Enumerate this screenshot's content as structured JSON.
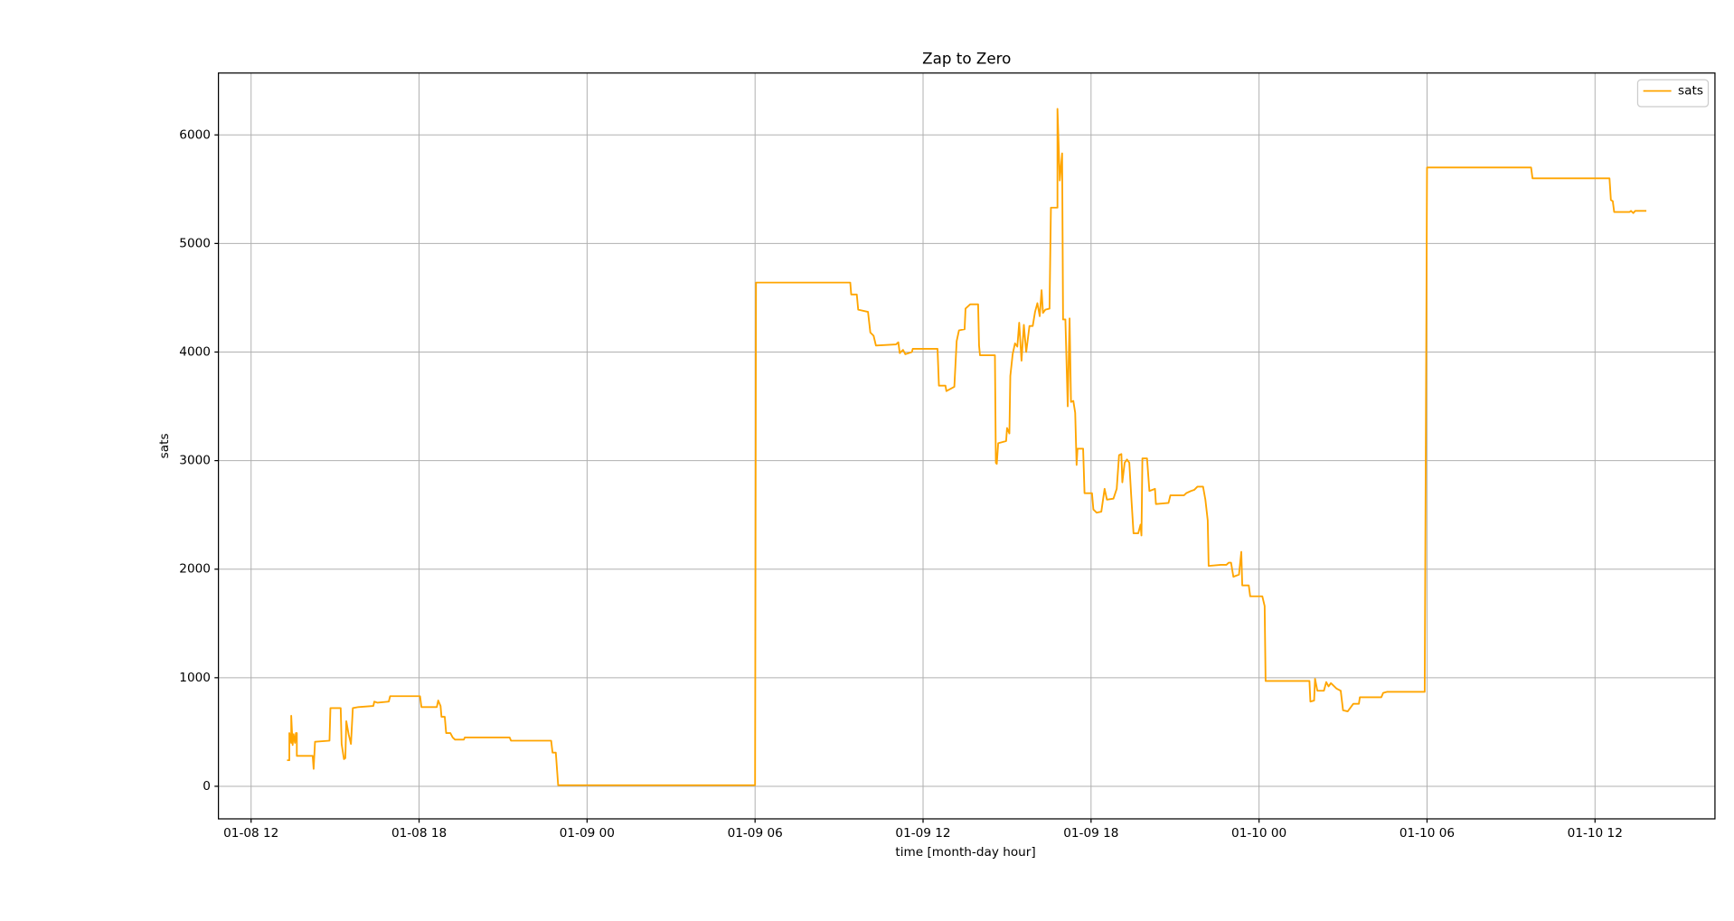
{
  "chart_data": {
    "type": "line",
    "title": "Zap to Zero",
    "x_label": "time [month-day hour]",
    "y_label": "sats",
    "xlim": [
      "01-08 10:50",
      "01-10 16:17"
    ],
    "xticks": [
      "01-08 12",
      "01-08 18",
      "01-09 00",
      "01-09 06",
      "01-09 12",
      "01-09 18",
      "01-10 00",
      "01-10 06",
      "01-10 12"
    ],
    "ylim": [
      -300,
      6570
    ],
    "yticks": [
      0,
      1000,
      2000,
      3000,
      4000,
      5000,
      6000
    ],
    "grid": true,
    "legend": "upper right",
    "x": [
      "01-08 13:17",
      "01-08 13:22",
      "01-08 13:22",
      "01-08 13:26",
      "01-08 13:26",
      "01-08 13:29",
      "01-08 13:31",
      "01-08 13:34",
      "01-08 13:36",
      "01-08 13:38",
      "01-08 13:38",
      "01-08 14:12",
      "01-08 14:14",
      "01-08 14:17",
      "01-08 14:48",
      "01-08 14:50",
      "01-08 15:12",
      "01-08 15:14",
      "01-08 15:19",
      "01-08 15:22",
      "01-08 15:24",
      "01-08 15:29",
      "01-08 15:34",
      "01-08 15:38",
      "01-08 15:50",
      "01-08 16:22",
      "01-08 16:24",
      "01-08 16:31",
      "01-08 16:55",
      "01-08 16:58",
      "01-08 18:02",
      "01-08 18:05",
      "01-08 18:38",
      "01-08 18:41",
      "01-08 18:46",
      "01-08 18:48",
      "01-08 18:55",
      "01-08 18:58",
      "01-08 19:07",
      "01-08 19:12",
      "01-08 19:17",
      "01-08 19:36",
      "01-08 19:38",
      "01-08 21:14",
      "01-08 21:17",
      "01-08 22:43",
      "01-08 22:46",
      "01-08 22:53",
      "01-08 22:58",
      "01-09 06:00",
      "01-09 06:02",
      "01-09 09:24",
      "01-09 09:26",
      "01-09 09:38",
      "01-09 09:41",
      "01-09 10:02",
      "01-09 10:07",
      "01-09 10:14",
      "01-09 10:19",
      "01-09 11:02",
      "01-09 11:07",
      "01-09 11:10",
      "01-09 11:17",
      "01-09 11:22",
      "01-09 11:36",
      "01-09 11:38",
      "01-09 12:31",
      "01-09 12:34",
      "01-09 12:48",
      "01-09 12:50",
      "01-09 13:07",
      "01-09 13:12",
      "01-09 13:17",
      "01-09 13:29",
      "01-09 13:31",
      "01-09 13:41",
      "01-09 13:58",
      "01-09 14:00",
      "01-09 14:02",
      "01-09 14:34",
      "01-09 14:36",
      "01-09 14:38",
      "01-09 14:41",
      "01-09 14:58",
      "01-09 15:00",
      "01-09 15:05",
      "01-09 15:07",
      "01-09 15:12",
      "01-09 15:17",
      "01-09 15:22",
      "01-09 15:26",
      "01-09 15:31",
      "01-09 15:36",
      "01-09 15:41",
      "01-09 15:48",
      "01-09 15:55",
      "01-09 16:00",
      "01-09 16:05",
      "01-09 16:10",
      "01-09 16:14",
      "01-09 16:17",
      "01-09 16:22",
      "01-09 16:31",
      "01-09 16:34",
      "01-09 16:48",
      "01-09 16:48",
      "01-09 16:53",
      "01-09 16:58",
      "01-09 17:00",
      "01-09 17:05",
      "01-09 17:10",
      "01-09 17:14",
      "01-09 17:17",
      "01-09 17:22",
      "01-09 17:26",
      "01-09 17:29",
      "01-09 17:31",
      "01-09 17:43",
      "01-09 17:46",
      "01-09 18:02",
      "01-09 18:05",
      "01-09 18:12",
      "01-09 18:22",
      "01-09 18:29",
      "01-09 18:34",
      "01-09 18:48",
      "01-09 18:55",
      "01-09 19:00",
      "01-09 19:05",
      "01-09 19:07",
      "01-09 19:12",
      "01-09 19:17",
      "01-09 19:22",
      "01-09 19:26",
      "01-09 19:31",
      "01-09 19:41",
      "01-09 19:46",
      "01-09 19:48",
      "01-09 19:50",
      "01-09 20:00",
      "01-09 20:05",
      "01-09 20:17",
      "01-09 20:19",
      "01-09 20:46",
      "01-09 20:50",
      "01-09 21:19",
      "01-09 21:24",
      "01-09 21:34",
      "01-09 21:41",
      "01-09 21:48",
      "01-09 22:00",
      "01-09 22:05",
      "01-09 22:10",
      "01-09 22:12",
      "01-09 22:38",
      "01-09 22:50",
      "01-09 22:55",
      "01-09 23:00",
      "01-09 23:05",
      "01-09 23:17",
      "01-09 23:22",
      "01-09 23:24",
      "01-09 23:38",
      "01-09 23:41",
      "01-10 00:07",
      "01-10 00:12",
      "01-10 00:14",
      "01-10 01:48",
      "01-10 01:50",
      "01-10 01:58",
      "01-10 02:00",
      "01-10 02:05",
      "01-10 02:19",
      "01-10 02:24",
      "01-10 02:29",
      "01-10 02:34",
      "01-10 02:46",
      "01-10 02:55",
      "01-10 03:00",
      "01-10 03:10",
      "01-10 03:22",
      "01-10 03:34",
      "01-10 03:36",
      "01-10 04:22",
      "01-10 04:26",
      "01-10 04:34",
      "01-10 05:55",
      "01-10 06:00",
      "01-10 09:43",
      "01-10 09:46",
      "01-10 12:31",
      "01-10 12:34",
      "01-10 12:38",
      "01-10 12:41",
      "01-10 13:14",
      "01-10 13:17",
      "01-10 13:22",
      "01-10 13:26",
      "01-10 13:50"
    ],
    "series": [
      {
        "name": "sats",
        "color": "#ffa500",
        "values": [
          240,
          240,
          490,
          400,
          650,
          380,
          480,
          400,
          490,
          490,
          280,
          280,
          160,
          410,
          420,
          720,
          720,
          390,
          250,
          260,
          600,
          480,
          390,
          720,
          730,
          740,
          780,
          770,
          780,
          830,
          830,
          730,
          730,
          790,
          740,
          640,
          640,
          490,
          490,
          450,
          430,
          430,
          450,
          450,
          420,
          420,
          310,
          310,
          10,
          10,
          4640,
          4640,
          4530,
          4530,
          4390,
          4370,
          4180,
          4150,
          4060,
          4070,
          4090,
          3990,
          4020,
          3980,
          4000,
          4030,
          4030,
          3690,
          3690,
          3640,
          3680,
          4100,
          4200,
          4210,
          4400,
          4440,
          4440,
          4060,
          3970,
          3970,
          2980,
          2970,
          3160,
          3180,
          3300,
          3250,
          3780,
          3980,
          4080,
          4050,
          4270,
          3920,
          4250,
          4000,
          4240,
          4240,
          4370,
          4450,
          4330,
          4570,
          4360,
          4390,
          4400,
          5330,
          5330,
          6240,
          5580,
          5830,
          4300,
          4300,
          3500,
          4310,
          3540,
          3550,
          3440,
          2960,
          3110,
          3110,
          2700,
          2700,
          2550,
          2520,
          2530,
          2740,
          2640,
          2650,
          2740,
          3050,
          3060,
          2800,
          2980,
          3010,
          2980,
          2680,
          2330,
          2330,
          2410,
          2310,
          3020,
          3020,
          2720,
          2740,
          2600,
          2610,
          2680,
          2680,
          2700,
          2720,
          2730,
          2760,
          2760,
          2640,
          2450,
          2030,
          2040,
          2040,
          2060,
          2060,
          1930,
          1950,
          2160,
          1850,
          1850,
          1750,
          1750,
          1660,
          970,
          970,
          780,
          790,
          990,
          880,
          880,
          960,
          920,
          950,
          900,
          880,
          700,
          690,
          760,
          760,
          820,
          820,
          860,
          870,
          870,
          5700,
          5700,
          5600,
          5600,
          5400,
          5390,
          5290,
          5290,
          5300,
          5280,
          5300,
          5300
        ]
      }
    ]
  }
}
